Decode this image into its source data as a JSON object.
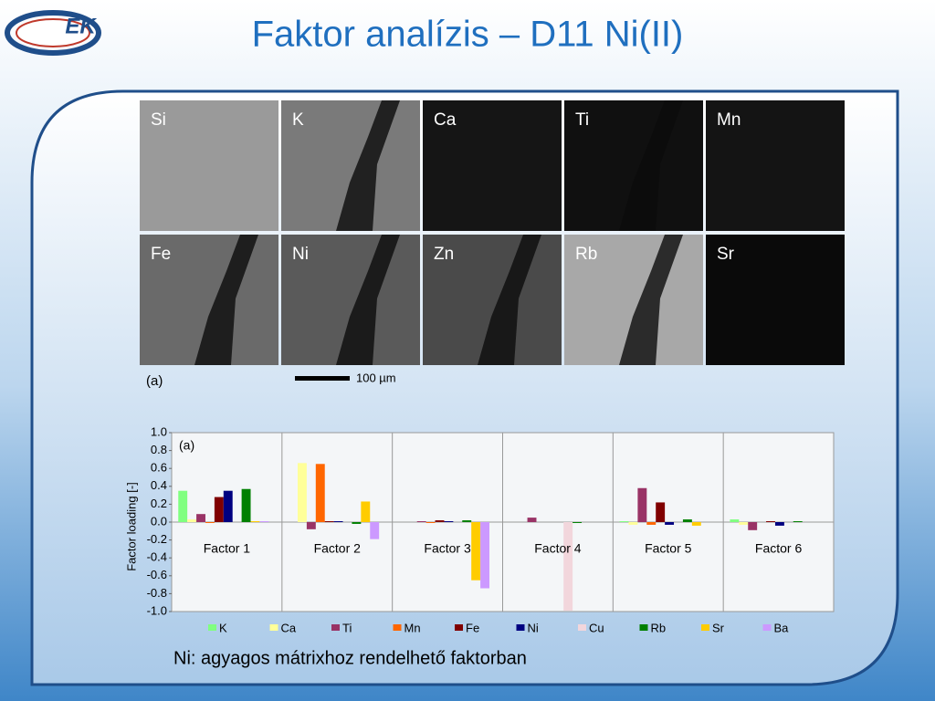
{
  "title": "Faktor analízis – D11 Ni(II)",
  "logo": "EK",
  "maps": {
    "labels": [
      "Si",
      "K",
      "Ca",
      "Ti",
      "Mn",
      "Fe",
      "Ni",
      "Zn",
      "Rb",
      "Sr"
    ],
    "caption": "(a)",
    "scale": "100 µm"
  },
  "chart_data": {
    "type": "bar",
    "annotation": "(a)",
    "y_label": "Factor loading [-]",
    "categories": [
      "Factor 1",
      "Factor 2",
      "Factor 3",
      "Factor 4",
      "Factor 5",
      "Factor 6"
    ],
    "series": [
      {
        "name": "K",
        "color": "#80ff80",
        "values": [
          0.35,
          0,
          0,
          0,
          0.01,
          0.03
        ]
      },
      {
        "name": "Ca",
        "color": "#ffff99",
        "values": [
          0.03,
          0.66,
          0,
          0,
          -0.03,
          -0.03
        ]
      },
      {
        "name": "Ti",
        "color": "#993366",
        "values": [
          0.09,
          -0.08,
          0.01,
          0.05,
          0.38,
          -0.09
        ]
      },
      {
        "name": "Mn",
        "color": "#ff6600",
        "values": [
          -0.01,
          0.65,
          -0.01,
          0,
          -0.03,
          0
        ]
      },
      {
        "name": "Fe",
        "color": "#800000",
        "values": [
          0.28,
          0.01,
          0.02,
          0,
          0.22,
          0.01
        ]
      },
      {
        "name": "Ni",
        "color": "#000080",
        "values": [
          0.35,
          0.01,
          0.01,
          0,
          -0.03,
          -0.04
        ]
      },
      {
        "name": "Cu",
        "color": "#f2d6dc",
        "values": [
          0,
          0,
          0,
          -0.99,
          0,
          0
        ]
      },
      {
        "name": "Rb",
        "color": "#008000",
        "values": [
          0.37,
          -0.02,
          0.02,
          -0.01,
          0.03,
          0.01
        ]
      },
      {
        "name": "Sr",
        "color": "#ffcc00",
        "values": [
          0.01,
          0.23,
          -0.65,
          0,
          -0.04,
          0
        ]
      },
      {
        "name": "Ba",
        "color": "#cc99ff",
        "values": [
          0.01,
          -0.19,
          -0.74,
          0,
          0,
          0
        ]
      }
    ],
    "ylim": [
      -1,
      1
    ],
    "yticks": [
      {
        "value": 1,
        "label": "1.0"
      },
      0.8,
      0.6,
      0.4,
      0.2,
      {
        "value": 0,
        "label": "0.0"
      },
      -0.2,
      -0.4,
      -0.6,
      -0.8,
      {
        "value": -1,
        "label": "-1.0"
      }
    ],
    "grid": false
  },
  "footer": "Ni: agyagos mátrixhoz rendelhető faktorban"
}
